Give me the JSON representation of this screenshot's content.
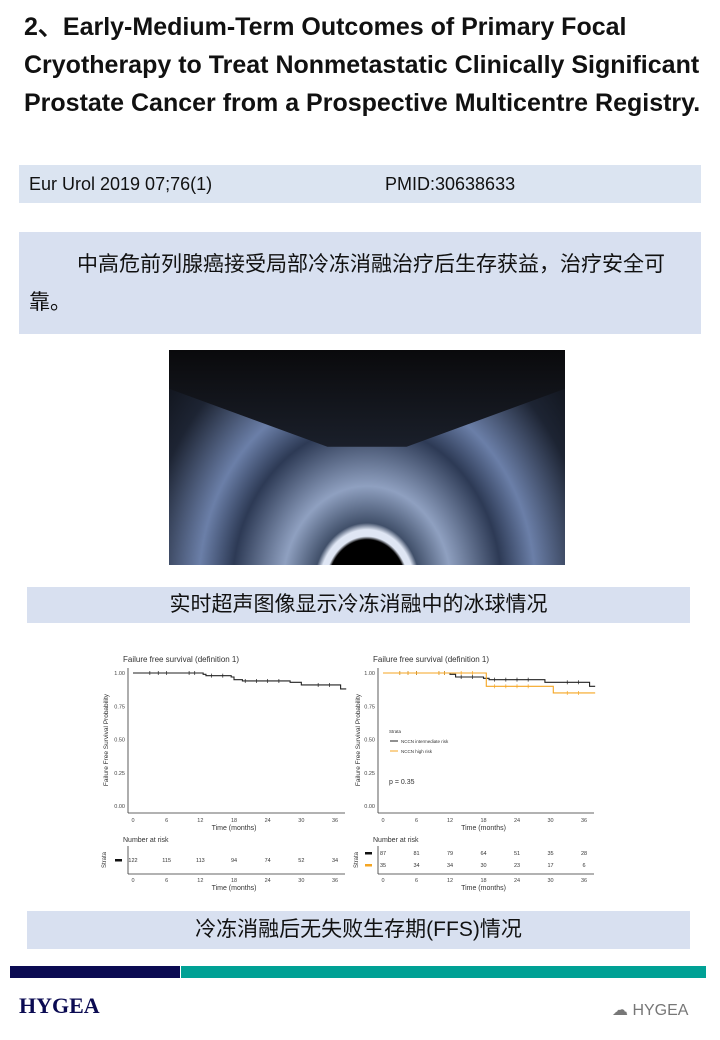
{
  "title": "2、Early-Medium-Term Outcomes of Primary Focal Cryotherapy to Treat Nonmetastatic Clinically Significant Prostate Cancer from a Prospective Multicentre Registry.",
  "citation": {
    "journal": "Eur Urol 2019 07;76(1)",
    "pmid": "PMID:30638633"
  },
  "summary": "中高危前列腺癌接受局部冷冻消融治疗后生存获益，治疗安全可靠。",
  "image_caption": "实时超声图像显示冷冻消融中的冰球情况",
  "chart_caption": "冷冻消融后无失败生存期(FFS)情况",
  "footer": {
    "logo": "HYGEA",
    "watermark": "HYGEA",
    "watermark_icon": "wechat-icon"
  },
  "chart_data": [
    {
      "type": "line",
      "title": "Failure free survival (definition 1)",
      "xlabel": "Time (months)",
      "ylabel": "Failure Free Survival Probability",
      "xticks": [
        0,
        6,
        12,
        18,
        24,
        30,
        36
      ],
      "yticks": [
        "0.00",
        "0.25",
        "0.50",
        "0.75",
        "1.00"
      ],
      "ylim": [
        0,
        1
      ],
      "series": [
        {
          "color": "#222222",
          "points": [
            [
              0,
              1
            ],
            [
              12.5,
              0.99
            ],
            [
              13,
              0.98
            ],
            [
              17.5,
              0.97
            ],
            [
              18,
              0.95
            ],
            [
              19.5,
              0.94
            ],
            [
              28,
              0.93
            ],
            [
              30,
              0.91
            ],
            [
              37,
              0.88
            ],
            [
              38,
              0.88
            ]
          ]
        }
      ],
      "risk_title": "Number at risk",
      "risk_label": "Strata",
      "risk": [
        {
          "color": "#111111",
          "values": [
            "122",
            "115",
            "113",
            "94",
            "74",
            "52",
            "34"
          ]
        }
      ]
    },
    {
      "type": "line",
      "title": "Failure free survival (definition 1)",
      "xlabel": "Time (months)",
      "ylabel": "Failure Free Survival Probability",
      "xticks": [
        0,
        6,
        12,
        18,
        24,
        30,
        36
      ],
      "yticks": [
        "0.00",
        "0.25",
        "0.50",
        "0.75",
        "1.00"
      ],
      "ylim": [
        0,
        1
      ],
      "legend_title": "Strata",
      "annotation": "p = 0.35",
      "series": [
        {
          "name": "NCCN intermediate risk",
          "color": "#222222",
          "points": [
            [
              0,
              1
            ],
            [
              12,
              0.99
            ],
            [
              13,
              0.97
            ],
            [
              18,
              0.96
            ],
            [
              19,
              0.95
            ],
            [
              29,
              0.93
            ],
            [
              37,
              0.9
            ],
            [
              38,
              0.9
            ]
          ]
        },
        {
          "name": "NCCN high risk",
          "color": "#f5a623",
          "points": [
            [
              0,
              1
            ],
            [
              18,
              1
            ],
            [
              18.5,
              0.9
            ],
            [
              30.5,
              0.85
            ],
            [
              38,
              0.85
            ]
          ]
        }
      ],
      "risk_title": "Number at risk",
      "risk_label": "Strata",
      "risk": [
        {
          "color": "#111111",
          "values": [
            "87",
            "81",
            "79",
            "64",
            "51",
            "35",
            "28"
          ]
        },
        {
          "color": "#f5a623",
          "values": [
            "35",
            "34",
            "34",
            "30",
            "23",
            "17",
            "6"
          ]
        }
      ]
    }
  ]
}
